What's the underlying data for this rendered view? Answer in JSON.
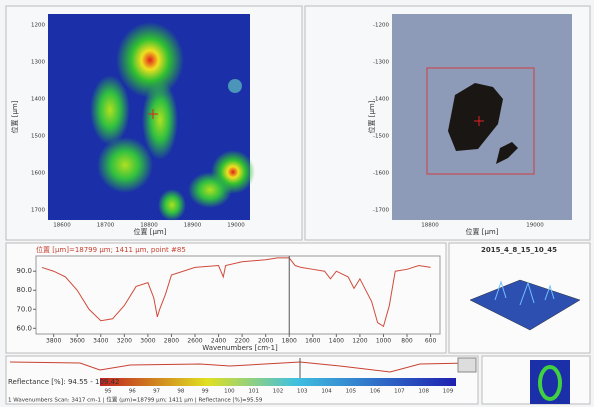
{
  "map_panel": {
    "x_label": "位置 [μm]",
    "y_label": "位置 [μm]",
    "xticks": [
      "18600",
      "18700",
      "18800",
      "18900",
      "19000"
    ],
    "yticks": [
      "1200",
      "1300",
      "1400",
      "1500",
      "1600",
      "1700"
    ]
  },
  "image_panel": {
    "x_label": "位置 [μm]",
    "y_label": "位置 [μm]",
    "xticks": [
      "18800",
      "19000"
    ],
    "yticks": [
      "-1200",
      "-1300",
      "-1400",
      "-1500",
      "-1600",
      "-1700"
    ]
  },
  "spectrum": {
    "type": "line",
    "header": "位置 [μm]=18799 μm; 1411 μm, point #85",
    "x_label": "Wavenumbers [cm-1]",
    "color": "#d04a3a",
    "xlim": [
      3950,
      520
    ],
    "ylim": [
      57,
      98
    ],
    "xticks": [
      3800,
      3600,
      3400,
      3200,
      3000,
      2800,
      2600,
      2400,
      2200,
      2000,
      1800,
      1600,
      1400,
      1200,
      1000,
      800,
      600
    ],
    "yticks": [
      {
        "value": 90,
        "label": "90.0"
      },
      {
        "value": 80,
        "label": "80.0"
      },
      {
        "value": 70,
        "label": "70.0"
      },
      {
        "value": 60,
        "label": "60.0"
      }
    ],
    "x": [
      3900,
      3800,
      3700,
      3600,
      3500,
      3400,
      3300,
      3200,
      3100,
      3000,
      2950,
      2920,
      2900,
      2850,
      2800,
      2600,
      2400,
      2360,
      2340,
      2200,
      2000,
      1900,
      1800,
      1750,
      1700,
      1600,
      1500,
      1450,
      1400,
      1300,
      1250,
      1200,
      1100,
      1050,
      1000,
      950,
      900,
      800,
      700,
      600
    ],
    "values": [
      92,
      90,
      87,
      80,
      70,
      64,
      65,
      72,
      82,
      84,
      76,
      66,
      70,
      78,
      88,
      92,
      93,
      87,
      93,
      95,
      96,
      97,
      97,
      93,
      92,
      91,
      90,
      86,
      90,
      87,
      81,
      86,
      74,
      63,
      61,
      72,
      90,
      91,
      93,
      92
    ]
  },
  "surface_panel": {
    "title": "2015_4_8_15_10_45"
  },
  "bottom": {
    "range": "Reflectance [%]: 94.55 - 109.42",
    "colorbar_ticks": [
      "95",
      "96",
      "97",
      "98",
      "99",
      "100",
      "101",
      "102",
      "103",
      "104",
      "105",
      "106",
      "107",
      "108",
      "109"
    ],
    "status": "1 Wavenumbers Scan: 3417 cm-1 | 位置 (μm)=18799 μm; 1411 μm | Reflectance [%]=95.59"
  }
}
